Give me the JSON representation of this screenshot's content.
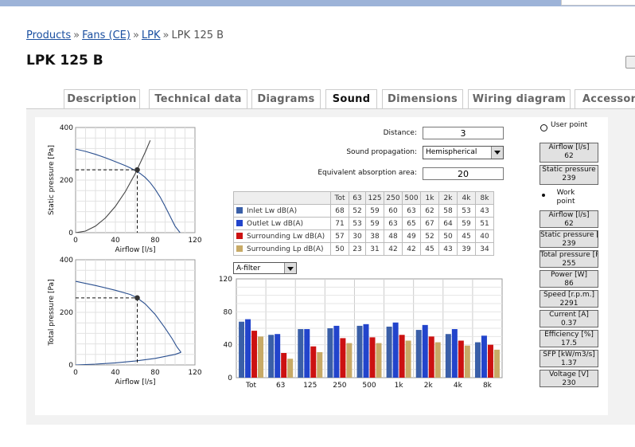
{
  "breadcrumb": {
    "links": [
      "Products",
      "Fans (CE)",
      "LPK"
    ],
    "separator": "»",
    "current": "LPK 125 B"
  },
  "page_title": "LPK 125 B",
  "tabs": [
    {
      "label": "Description",
      "active": false
    },
    {
      "label": "Technical data",
      "active": false
    },
    {
      "label": "Diagrams",
      "active": false
    },
    {
      "label": "Sound",
      "active": true
    },
    {
      "label": "Dimensions",
      "active": false
    },
    {
      "label": "Wiring diagram",
      "active": false
    },
    {
      "label": "Accessori",
      "active": false
    }
  ],
  "settings": {
    "distance_label": "Distance:",
    "distance_value": "3",
    "propagation_label": "Sound propagation:",
    "propagation_value": "Hemispherical",
    "absorption_label": "Equivalent absorption area:",
    "absorption_value": "20"
  },
  "sound_table": {
    "headers": [
      "Tot",
      "63",
      "125",
      "250",
      "500",
      "1k",
      "2k",
      "4k",
      "8k"
    ],
    "rows": [
      {
        "label": "Inlet Lw dB(A)",
        "color": "#3a5fa8",
        "values": [
          "68",
          "52",
          "59",
          "60",
          "63",
          "62",
          "58",
          "53",
          "43"
        ]
      },
      {
        "label": "Outlet Lw dB(A)",
        "color": "#2244cc",
        "values": [
          "71",
          "53",
          "59",
          "63",
          "65",
          "67",
          "64",
          "59",
          "51"
        ]
      },
      {
        "label": "Surrounding Lw dB(A)",
        "color": "#cc1111",
        "values": [
          "57",
          "30",
          "38",
          "48",
          "49",
          "52",
          "50",
          "45",
          "40"
        ]
      },
      {
        "label": "Surrounding Lp dB(A)",
        "color": "#c8aa66",
        "values": [
          "50",
          "23",
          "31",
          "42",
          "42",
          "45",
          "43",
          "39",
          "34"
        ]
      }
    ]
  },
  "filter": {
    "value": "A-filter"
  },
  "operating_point": {
    "user_point_label": "User point",
    "user": [
      {
        "label": "Airflow [l/s]",
        "value": "62"
      },
      {
        "label": "Static pressure",
        "value": "239"
      }
    ],
    "work_point_label": "Work point",
    "work": [
      {
        "label": "Airflow [l/s]",
        "value": "62"
      },
      {
        "label": "Static pressure [l",
        "value": "239"
      },
      {
        "label": "Total pressure [P",
        "value": "255"
      },
      {
        "label": "Power [W]",
        "value": "86"
      },
      {
        "label": "Speed [r.p.m.]",
        "value": "2291"
      },
      {
        "label": "Current [A]",
        "value": "0.37"
      },
      {
        "label": "Efficiency [%]",
        "value": "17.5"
      },
      {
        "label": "SFP [kW/m3/s]",
        "value": "1.37"
      },
      {
        "label": "Voltage [V]",
        "value": "230"
      }
    ]
  },
  "chart_data": [
    {
      "type": "line",
      "xlabel": "Airflow [l/s]",
      "ylabel": "Static pressure [Pa]",
      "xlim": [
        0,
        120
      ],
      "ylim": [
        0,
        400
      ],
      "xticks": [
        0,
        40,
        80,
        120
      ],
      "yticks": [
        0,
        200,
        400
      ],
      "grid": true,
      "series": [
        {
          "kind": "fan curve",
          "color": "#2a4f8f",
          "x": [
            0,
            10,
            20,
            30,
            40,
            50,
            55,
            60,
            65,
            70,
            75,
            80,
            85,
            90,
            95,
            100,
            105
          ],
          "y": [
            318,
            309,
            298,
            285,
            270,
            255,
            246,
            236,
            225,
            210,
            190,
            165,
            135,
            100,
            62,
            25,
            0
          ]
        },
        {
          "kind": "system curve",
          "color": "#444444",
          "x": [
            0,
            10,
            20,
            30,
            40,
            50,
            60,
            70,
            75
          ],
          "y": [
            0,
            6,
            25,
            56,
            100,
            156,
            225,
            306,
            351
          ]
        }
      ],
      "operating_point": {
        "x": 62,
        "y": 239
      }
    },
    {
      "type": "line",
      "xlabel": "Airflow [l/s]",
      "ylabel": "Total pressure [Pa]",
      "xlim": [
        0,
        120
      ],
      "ylim": [
        0,
        400
      ],
      "xticks": [
        0,
        40,
        80,
        120
      ],
      "yticks": [
        0,
        200,
        400
      ],
      "grid": true,
      "series": [
        {
          "kind": "fan curve",
          "color": "#2a4f8f",
          "x": [
            0,
            20,
            40,
            55,
            62,
            70,
            80,
            90,
            97,
            102,
            106
          ],
          "y": [
            318,
            302,
            284,
            268,
            255,
            232,
            192,
            140,
            100,
            68,
            48
          ]
        },
        {
          "kind": "dynamic curve",
          "color": "#2a4f8f",
          "x": [
            0,
            20,
            40,
            60,
            80,
            100,
            106
          ],
          "y": [
            0,
            3,
            8,
            15,
            25,
            40,
            48
          ]
        }
      ],
      "operating_point": {
        "x": 62,
        "y": 255
      }
    },
    {
      "type": "bar",
      "categories": [
        "Tot",
        "63",
        "125",
        "250",
        "500",
        "1k",
        "2k",
        "4k",
        "8k"
      ],
      "ylim": [
        0,
        120
      ],
      "yticks": [
        0,
        40,
        80,
        120
      ],
      "grid": true,
      "series": [
        {
          "name": "Inlet Lw dB(A)",
          "color": "#3a5fa8",
          "values": [
            68,
            52,
            59,
            60,
            63,
            62,
            58,
            53,
            43
          ]
        },
        {
          "name": "Outlet Lw dB(A)",
          "color": "#2244cc",
          "values": [
            71,
            53,
            59,
            63,
            65,
            67,
            64,
            59,
            51
          ]
        },
        {
          "name": "Surrounding Lw dB(A)",
          "color": "#cc1111",
          "values": [
            57,
            30,
            38,
            48,
            49,
            52,
            50,
            45,
            40
          ]
        },
        {
          "name": "Surrounding Lp dB(A)",
          "color": "#c8aa66",
          "values": [
            50,
            23,
            31,
            42,
            42,
            45,
            43,
            39,
            34
          ]
        }
      ]
    }
  ]
}
